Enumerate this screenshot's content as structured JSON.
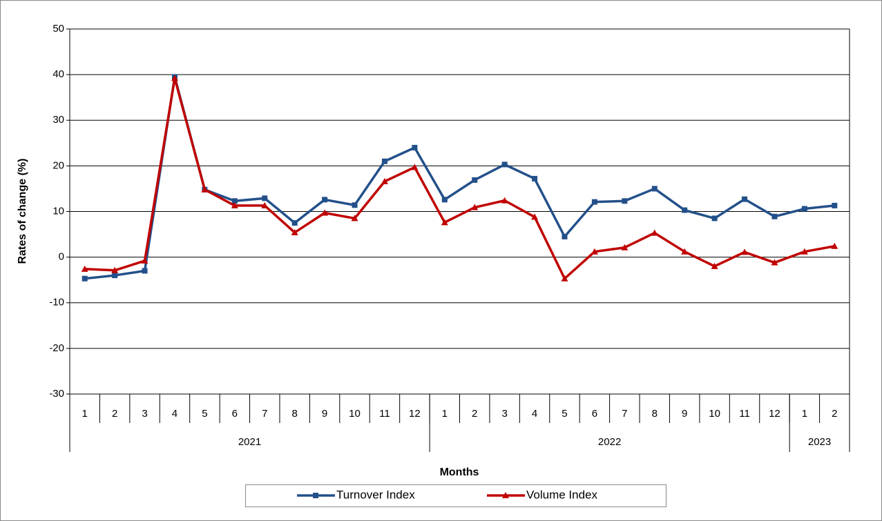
{
  "chart_data": {
    "type": "line",
    "x_title": "Months",
    "y_title": "Rates of change (%)",
    "categories": [
      "1",
      "2",
      "3",
      "4",
      "5",
      "6",
      "7",
      "8",
      "9",
      "10",
      "11",
      "12",
      "1",
      "2",
      "3",
      "4",
      "5",
      "6",
      "7",
      "8",
      "9",
      "10",
      "11",
      "12",
      "1",
      "2"
    ],
    "groups": [
      {
        "name": "2021",
        "span": 12
      },
      {
        "name": "2022",
        "span": 12
      },
      {
        "name": "2023",
        "span": 2
      }
    ],
    "series": [
      {
        "name": "Turnover Index",
        "color": "#23508a",
        "marker": "square",
        "values": [
          -4.7,
          -4.0,
          -3.0,
          39.5,
          14.8,
          12.3,
          12.9,
          7.5,
          12.6,
          11.4,
          21.0,
          24.0,
          12.6,
          16.9,
          20.3,
          17.2,
          4.5,
          12.1,
          12.3,
          15.0,
          10.3,
          8.5,
          12.7,
          8.9,
          10.6,
          11.3
        ]
      },
      {
        "name": "Volume Index",
        "color": "#c00000",
        "marker": "triangle",
        "values": [
          -2.6,
          -2.9,
          -0.8,
          39.2,
          14.8,
          11.3,
          11.3,
          5.4,
          9.7,
          8.5,
          16.6,
          19.7,
          7.6,
          10.9,
          12.4,
          8.8,
          -4.7,
          1.2,
          2.1,
          5.3,
          1.2,
          -2.0,
          1.1,
          -1.2,
          1.2,
          2.4
        ]
      }
    ],
    "ylim": [
      -30,
      50
    ],
    "yticks": [
      -30,
      -20,
      -10,
      0,
      10,
      20,
      30,
      40,
      50
    ],
    "grid": true,
    "legend": "bottom"
  }
}
